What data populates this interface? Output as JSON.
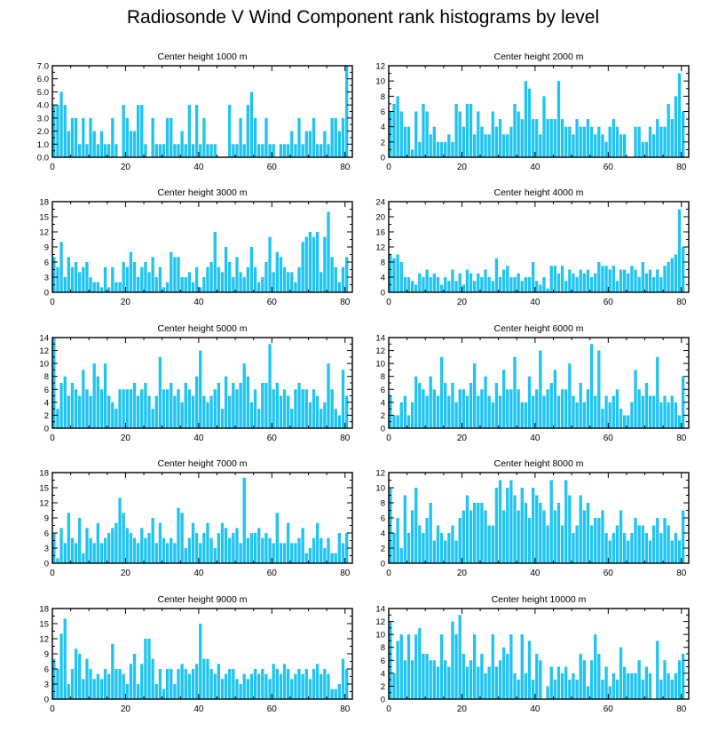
{
  "title": "Radiosonde V Wind Component rank histograms by level",
  "colors": {
    "bar": "#1ec4f2",
    "axis": "#000000"
  },
  "chart_data": [
    {
      "type": "bar",
      "title": "Center height 1000 m",
      "xlim": [
        0,
        82
      ],
      "xticks": [
        0,
        20,
        40,
        60,
        80
      ],
      "ylim": [
        0,
        7
      ],
      "yticks": [
        "0.0",
        "1.0",
        "2.0",
        "3.0",
        "4.0",
        "5.0",
        "6.0",
        "7.0"
      ],
      "values": [
        4,
        4,
        5,
        4,
        2,
        3,
        3,
        1,
        3,
        1,
        3,
        2,
        1,
        2,
        1,
        1,
        3,
        1,
        0,
        4,
        3,
        2,
        2,
        4,
        4,
        1,
        0,
        3,
        1,
        1,
        1,
        3,
        3,
        1,
        1,
        2,
        1,
        4,
        1,
        4,
        1,
        3,
        1,
        1,
        1,
        0,
        0,
        0,
        4,
        1,
        1,
        3,
        1,
        4,
        5,
        3,
        1,
        1,
        3,
        1,
        1,
        0,
        1,
        1,
        1,
        2,
        1,
        3,
        1,
        2,
        2,
        3,
        1,
        1,
        2,
        1,
        3,
        3,
        2,
        3,
        7
      ]
    },
    {
      "type": "bar",
      "title": "Center height 2000 m",
      "xlim": [
        0,
        82
      ],
      "xticks": [
        0,
        20,
        40,
        60,
        80
      ],
      "ylim": [
        0,
        12
      ],
      "yticks": [
        "0",
        "2",
        "4",
        "6",
        "8",
        "10",
        "12"
      ],
      "values": [
        6,
        7,
        8,
        6,
        4,
        4,
        1,
        6,
        2,
        7,
        6,
        3,
        4,
        2,
        2,
        2,
        3,
        2,
        7,
        6,
        4,
        7,
        7,
        3,
        6,
        4,
        3,
        3,
        6,
        4,
        5,
        3,
        3,
        4,
        7,
        6,
        5,
        10,
        9,
        5,
        5,
        3,
        8,
        5,
        5,
        5,
        10,
        5,
        4,
        4,
        3,
        5,
        4,
        4,
        5,
        4,
        3,
        4,
        3,
        2,
        4,
        5,
        4,
        3,
        3,
        0,
        0,
        4,
        4,
        2,
        2,
        4,
        3,
        5,
        4,
        4,
        7,
        5,
        8,
        11,
        6
      ]
    },
    {
      "type": "bar",
      "title": "Center height 3000 m",
      "xlim": [
        0,
        82
      ],
      "xticks": [
        0,
        20,
        40,
        60,
        80
      ],
      "ylim": [
        0,
        18
      ],
      "yticks": [
        "0",
        "3",
        "6",
        "9",
        "12",
        "15",
        "18"
      ],
      "values": [
        7,
        5,
        10,
        3,
        7,
        5,
        6,
        4,
        5,
        6,
        3,
        2,
        2,
        1,
        5,
        1,
        5,
        2,
        2,
        6,
        5,
        8,
        6,
        3,
        5,
        6,
        4,
        7,
        3,
        5,
        1,
        2,
        8,
        7,
        7,
        3,
        3,
        4,
        2,
        5,
        1,
        3,
        5,
        6,
        12,
        5,
        4,
        9,
        6,
        3,
        7,
        4,
        3,
        5,
        9,
        5,
        2,
        3,
        6,
        11,
        4,
        8,
        7,
        5,
        4,
        4,
        2,
        5,
        10,
        11,
        12,
        11,
        12,
        4,
        11,
        16,
        7,
        5,
        2,
        5,
        7
      ]
    },
    {
      "type": "bar",
      "title": "Center height 4000 m",
      "xlim": [
        0,
        82
      ],
      "xticks": [
        0,
        20,
        40,
        60,
        80
      ],
      "ylim": [
        0,
        24
      ],
      "yticks": [
        "0",
        "4",
        "8",
        "12",
        "16",
        "20",
        "24"
      ],
      "values": [
        10,
        9,
        10,
        8,
        4,
        4,
        3,
        2,
        5,
        4,
        6,
        4,
        5,
        4,
        2,
        4,
        3,
        6,
        3,
        5,
        2,
        6,
        5,
        3,
        5,
        4,
        6,
        4,
        3,
        9,
        4,
        6,
        7,
        4,
        4,
        5,
        3,
        4,
        4,
        8,
        3,
        2,
        4,
        1,
        7,
        7,
        5,
        7,
        3,
        6,
        5,
        4,
        6,
        5,
        6,
        4,
        5,
        8,
        7,
        7,
        6,
        7,
        3,
        6,
        6,
        5,
        7,
        6,
        4,
        8,
        5,
        6,
        4,
        6,
        4,
        7,
        8,
        9,
        10,
        22,
        12
      ]
    },
    {
      "type": "bar",
      "title": "Center height 5000 m",
      "xlim": [
        0,
        82
      ],
      "xticks": [
        0,
        20,
        40,
        60,
        80
      ],
      "ylim": [
        0,
        14
      ],
      "yticks": [
        "0",
        "2",
        "4",
        "6",
        "8",
        "10",
        "12",
        "14"
      ],
      "values": [
        14,
        3,
        7,
        8,
        5,
        7,
        6,
        5,
        9,
        6,
        5,
        10,
        8,
        6,
        10,
        5,
        4,
        3,
        6,
        6,
        6,
        6,
        7,
        5,
        6,
        7,
        5,
        3,
        5,
        11,
        6,
        6,
        7,
        5,
        6,
        4,
        7,
        6,
        5,
        8,
        12,
        5,
        4,
        5,
        6,
        7,
        3,
        8,
        5,
        7,
        6,
        7,
        10,
        8,
        4,
        6,
        3,
        7,
        7,
        13,
        6,
        7,
        5,
        6,
        5,
        3,
        6,
        7,
        6,
        6,
        4,
        6,
        5,
        3,
        4,
        10,
        6,
        3,
        2,
        9,
        5
      ]
    },
    {
      "type": "bar",
      "title": "Center height 6000 m",
      "xlim": [
        0,
        82
      ],
      "xticks": [
        0,
        20,
        40,
        60,
        80
      ],
      "ylim": [
        0,
        14
      ],
      "yticks": [
        "0",
        "2",
        "4",
        "6",
        "8",
        "10",
        "12",
        "14"
      ],
      "values": [
        5,
        2,
        2,
        4,
        5,
        2,
        4,
        8,
        7,
        6,
        5,
        8,
        6,
        5,
        11,
        7,
        5,
        7,
        4,
        6,
        6,
        5,
        7,
        10,
        5,
        6,
        8,
        5,
        4,
        7,
        5,
        9,
        6,
        6,
        11,
        6,
        4,
        4,
        8,
        5,
        6,
        12,
        5,
        6,
        7,
        9,
        5,
        6,
        6,
        10,
        5,
        4,
        7,
        4,
        6,
        13,
        5,
        12,
        3,
        5,
        4,
        5,
        6,
        3,
        2,
        2,
        4,
        9,
        6,
        5,
        7,
        5,
        5,
        11,
        4,
        5,
        4,
        5,
        4,
        2,
        8
      ]
    },
    {
      "type": "bar",
      "title": "Center height 7000 m",
      "xlim": [
        0,
        82
      ],
      "xticks": [
        0,
        20,
        40,
        60,
        80
      ],
      "ylim": [
        0,
        18
      ],
      "yticks": [
        "0",
        "3",
        "6",
        "9",
        "12",
        "15",
        "18"
      ],
      "values": [
        6,
        1,
        7,
        4,
        10,
        5,
        4,
        9,
        2,
        7,
        5,
        4,
        8,
        4,
        5,
        6,
        7,
        8,
        13,
        10,
        7,
        6,
        5,
        4,
        7,
        5,
        6,
        9,
        4,
        8,
        5,
        4,
        5,
        4,
        11,
        10,
        3,
        5,
        8,
        6,
        4,
        6,
        8,
        5,
        3,
        6,
        8,
        7,
        5,
        6,
        7,
        4,
        17,
        5,
        6,
        6,
        7,
        5,
        6,
        5,
        4,
        10,
        4,
        4,
        8,
        4,
        4,
        5,
        7,
        2,
        3,
        5,
        8,
        5,
        3,
        5,
        2,
        2,
        6,
        4,
        6
      ]
    },
    {
      "type": "bar",
      "title": "Center height 8000 m",
      "xlim": [
        0,
        82
      ],
      "xticks": [
        0,
        20,
        40,
        60,
        80
      ],
      "ylim": [
        0,
        12
      ],
      "yticks": [
        "0",
        "2",
        "4",
        "6",
        "8",
        "10",
        "12"
      ],
      "values": [
        10,
        4,
        6,
        2,
        9,
        4,
        7,
        10,
        5,
        4,
        6,
        8,
        3,
        5,
        4,
        3,
        4,
        5,
        3,
        6,
        7,
        9,
        7,
        8,
        8,
        8,
        7,
        5,
        5,
        10,
        11,
        7,
        10,
        11,
        9,
        7,
        10,
        8,
        6,
        10,
        9,
        8,
        7,
        5,
        11,
        7,
        8,
        5,
        11,
        9,
        4,
        5,
        9,
        7,
        8,
        5,
        6,
        6,
        7,
        4,
        3,
        4,
        5,
        7,
        4,
        3,
        4,
        6,
        5,
        5,
        4,
        3,
        5,
        6,
        4,
        6,
        5,
        3,
        4,
        3,
        7
      ]
    },
    {
      "type": "bar",
      "title": "Center height 9000 m",
      "xlim": [
        0,
        82
      ],
      "xticks": [
        0,
        20,
        40,
        60,
        80
      ],
      "ylim": [
        0,
        18
      ],
      "yticks": [
        "0",
        "3",
        "6",
        "9",
        "12",
        "15",
        "18"
      ],
      "values": [
        8,
        6,
        13,
        16,
        3,
        6,
        10,
        9,
        4,
        8,
        6,
        4,
        5,
        4,
        6,
        5,
        11,
        6,
        6,
        5,
        3,
        7,
        9,
        3,
        7,
        12,
        12,
        8,
        3,
        6,
        2,
        6,
        6,
        3,
        6,
        7,
        6,
        5,
        6,
        7,
        15,
        8,
        8,
        6,
        5,
        7,
        4,
        5,
        6,
        6,
        4,
        3,
        5,
        4,
        5,
        6,
        5,
        6,
        5,
        4,
        7,
        6,
        5,
        7,
        6,
        4,
        5,
        6,
        5,
        6,
        4,
        6,
        7,
        5,
        6,
        5,
        2,
        2,
        3,
        8,
        6
      ]
    },
    {
      "type": "bar",
      "title": "Center height 10000 m",
      "xlim": [
        0,
        82
      ],
      "xticks": [
        0,
        20,
        40,
        60,
        80
      ],
      "ylim": [
        0,
        14
      ],
      "yticks": [
        "0",
        "2",
        "4",
        "6",
        "8",
        "10",
        "12",
        "14"
      ],
      "values": [
        12,
        4,
        9,
        10,
        6,
        10,
        6,
        10,
        11,
        7,
        7,
        6,
        6,
        5,
        10,
        6,
        5,
        12,
        10,
        13,
        7,
        5,
        6,
        10,
        5,
        7,
        4,
        5,
        10,
        5,
        6,
        8,
        7,
        10,
        4,
        3,
        10,
        4,
        9,
        3,
        7,
        6,
        0,
        2,
        5,
        3,
        5,
        4,
        5,
        3,
        4,
        3,
        7,
        6,
        2,
        6,
        10,
        7,
        3,
        5,
        2,
        4,
        3,
        8,
        5,
        4,
        4,
        4,
        6,
        3,
        5,
        4,
        0,
        9,
        3,
        6,
        4,
        3,
        4,
        6,
        7
      ]
    }
  ]
}
